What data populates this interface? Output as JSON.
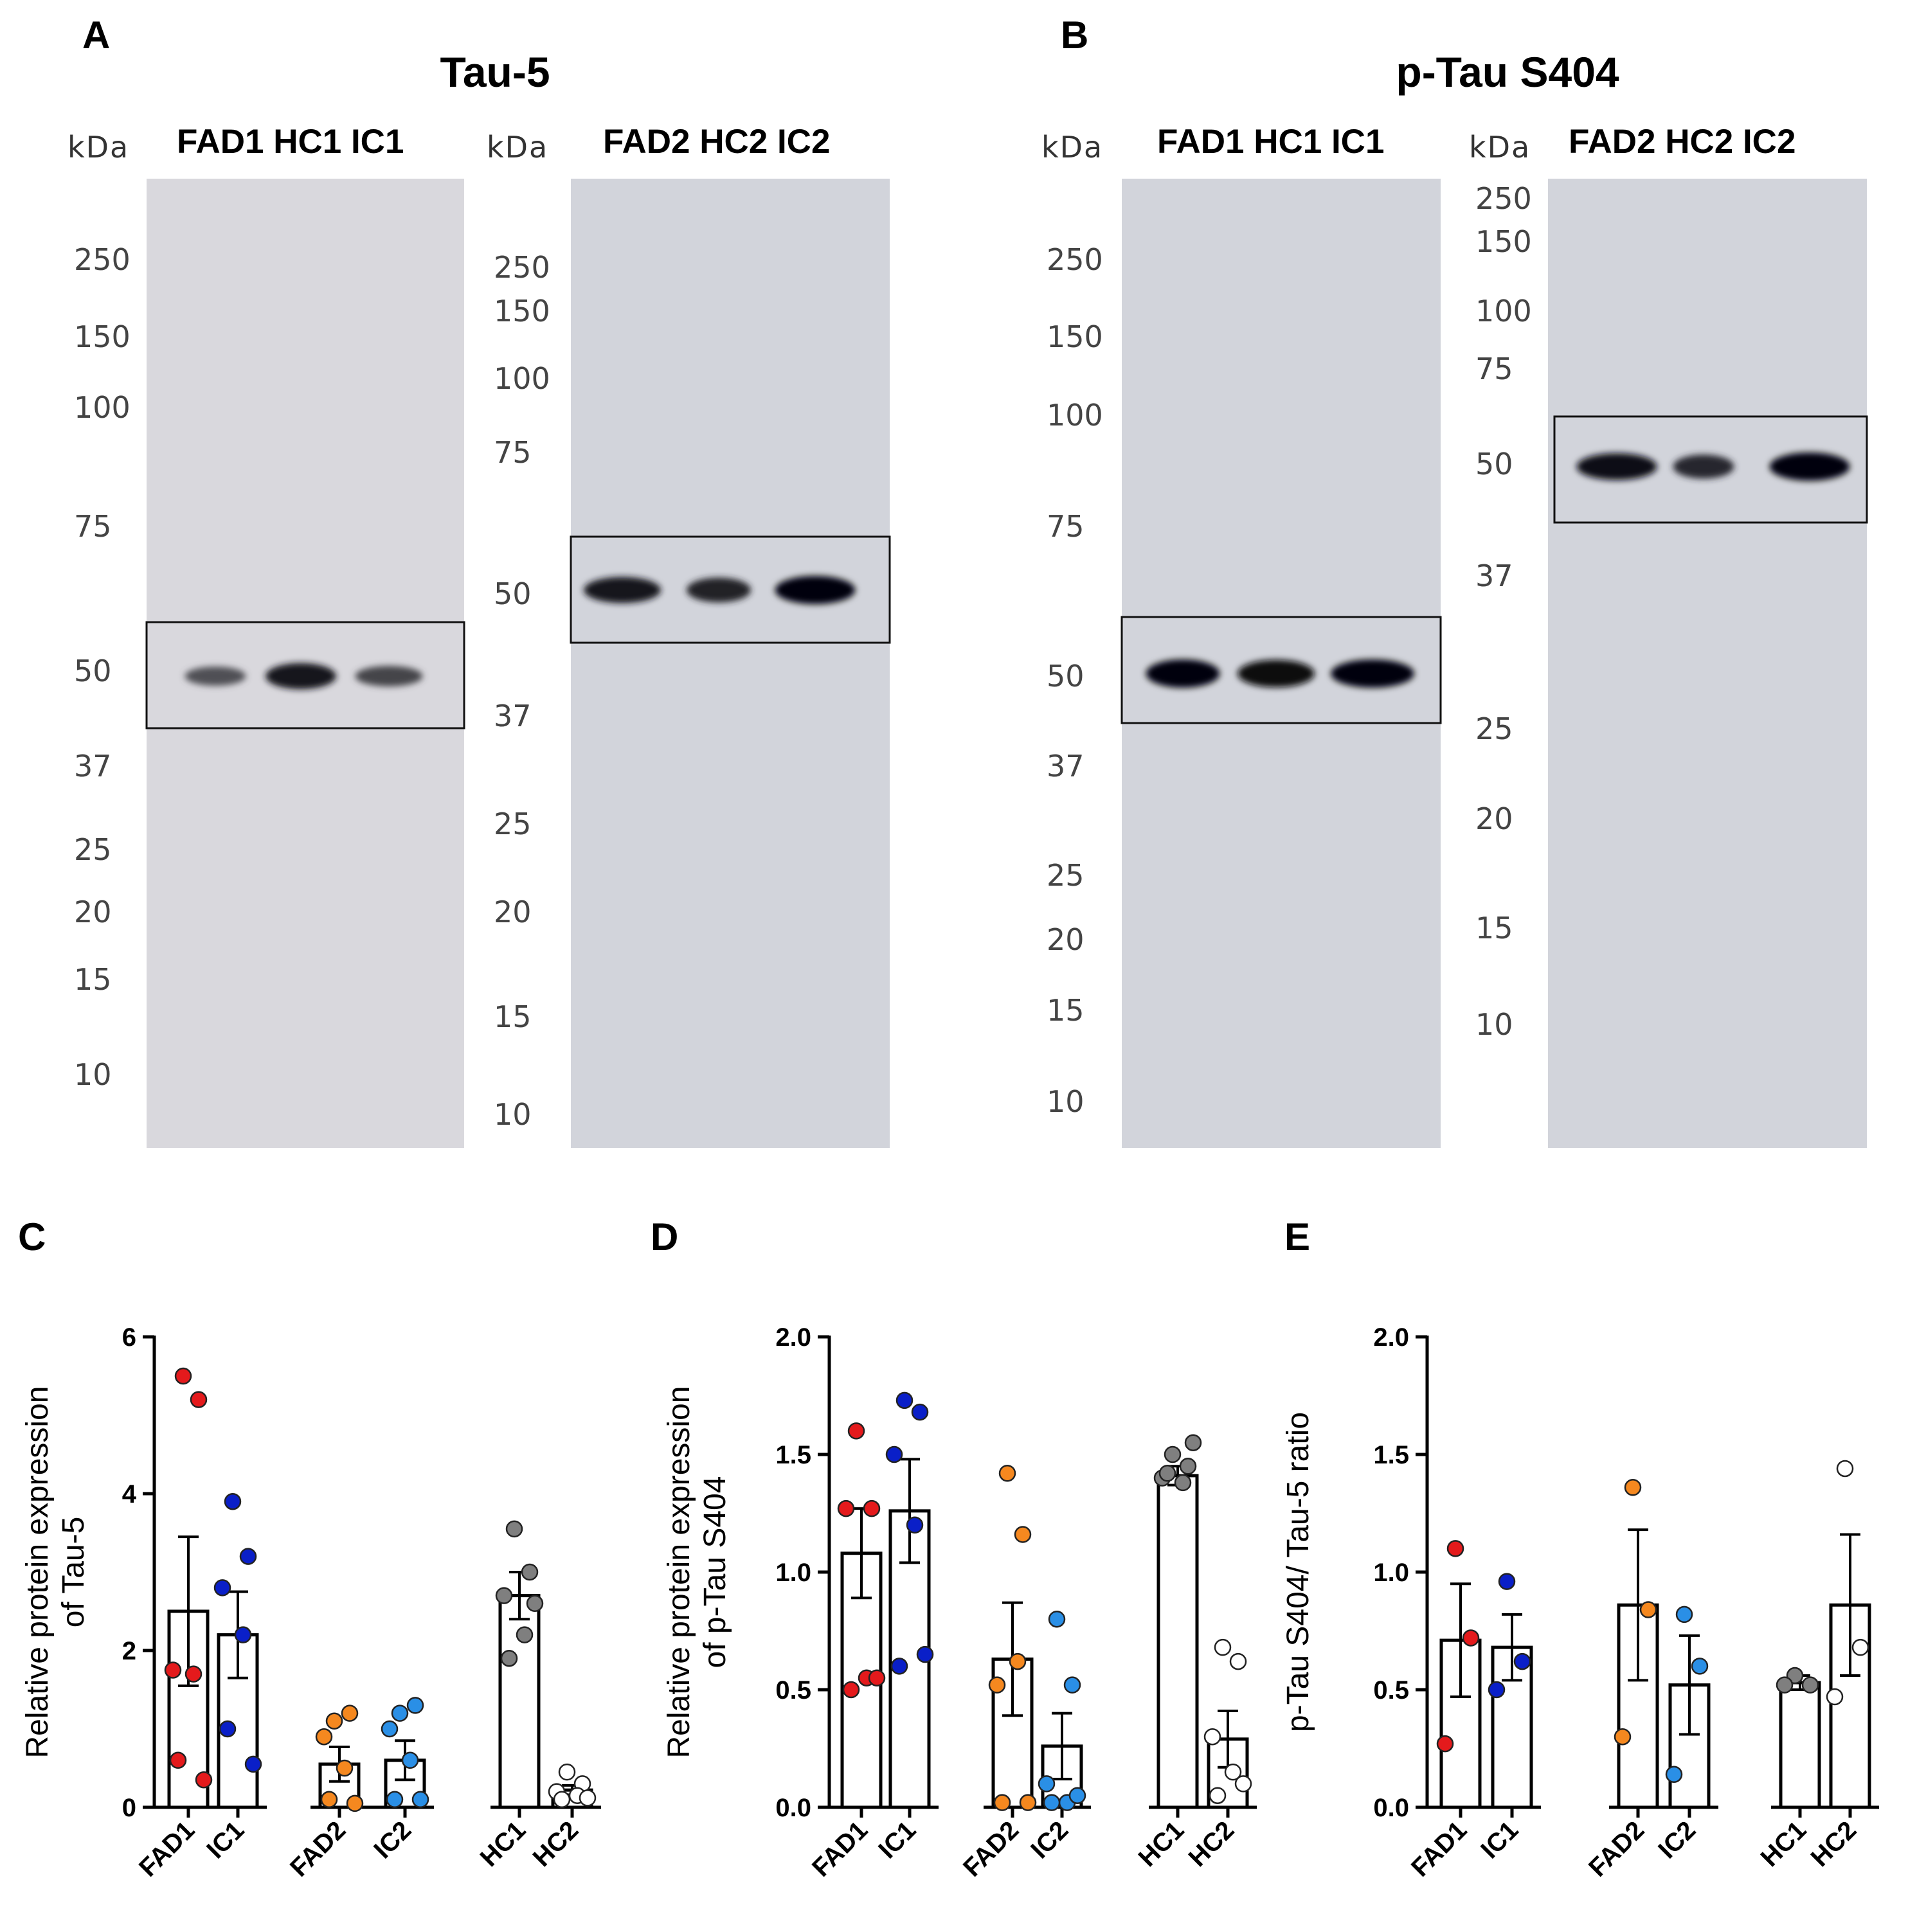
{
  "blots": [
    {
      "letter": "A",
      "title": "Tau-5",
      "membranes": [
        {
          "kda": "kDa",
          "lanes": "FAD1 HC1 IC1",
          "markers": [
            "250",
            "150",
            "100",
            "75",
            "50",
            "37",
            "25",
            "20",
            "15",
            "10"
          ],
          "bands": [
            0.35,
            0.85,
            0.45
          ]
        },
        {
          "kda": "kDa",
          "lanes": "FAD2 HC2 IC2",
          "markers": [
            "250",
            "150",
            "100",
            "75",
            "50",
            "37",
            "25",
            "20",
            "15",
            "10"
          ],
          "bands": [
            0.85,
            0.75,
            1.0
          ]
        }
      ]
    },
    {
      "letter": "B",
      "title": "p-Tau S404",
      "membranes": [
        {
          "kda": "kDa",
          "lanes": "FAD1 HC1 IC1",
          "markers": [
            "250",
            "150",
            "100",
            "75",
            "50",
            "37",
            "25",
            "20",
            "15",
            "10"
          ],
          "bands": [
            1.0,
            0.95,
            1.0
          ]
        },
        {
          "kda": "kDa",
          "lanes": "FAD2 HC2 IC2",
          "markers": [
            "250",
            "150",
            "100",
            "75",
            "50",
            "37",
            "25",
            "20",
            "15",
            "10"
          ],
          "bands": [
            0.9,
            0.7,
            1.0
          ]
        }
      ]
    }
  ],
  "chart_data": [
    {
      "letter": "C",
      "type": "bar",
      "ylabel_lines": [
        "Relative protein expression",
        "of Tau-5"
      ],
      "ylim": [
        0,
        6
      ],
      "yticks": [
        0,
        2,
        4,
        6
      ],
      "yticklabels": [
        "0",
        "2",
        "4",
        "6"
      ],
      "categories": [
        "FAD1",
        "IC1",
        "FAD2",
        "IC2",
        "HC1",
        "HC2"
      ],
      "colors": [
        "#e41a1c",
        "#0a1fc8",
        "#f5881f",
        "#2a8fe6",
        "#7f7f7f",
        "#ffffff"
      ],
      "means": [
        2.5,
        2.2,
        0.55,
        0.6,
        2.7,
        0.22
      ],
      "sem": [
        0.95,
        0.55,
        0.22,
        0.25,
        0.3,
        0.06
      ],
      "points": [
        [
          5.5,
          5.2,
          1.75,
          1.7,
          0.6,
          0.35
        ],
        [
          3.9,
          3.2,
          2.8,
          2.2,
          1.0,
          0.55
        ],
        [
          1.1,
          1.2,
          0.9,
          0.5,
          0.1,
          0.05
        ],
        [
          1.2,
          1.3,
          1.0,
          0.6,
          0.1,
          0.1
        ],
        [
          3.55,
          3.0,
          2.7,
          2.2,
          1.9,
          2.6
        ],
        [
          0.45,
          0.3,
          0.2,
          0.15,
          0.1,
          0.12
        ]
      ]
    },
    {
      "letter": "D",
      "type": "bar",
      "ylabel_lines": [
        "Relative protein expression",
        "of p-Tau S404"
      ],
      "ylim": [
        0,
        2.0
      ],
      "yticks": [
        0,
        0.5,
        1.0,
        1.5,
        2.0
      ],
      "yticklabels": [
        "0.0",
        "0.5",
        "1.0",
        "1.5",
        "2.0"
      ],
      "categories": [
        "FAD1",
        "IC1",
        "FAD2",
        "IC2",
        "HC1",
        "HC2"
      ],
      "colors": [
        "#e41a1c",
        "#0a1fc8",
        "#f5881f",
        "#2a8fe6",
        "#7f7f7f",
        "#ffffff"
      ],
      "means": [
        1.08,
        1.26,
        0.63,
        0.26,
        1.41,
        0.29
      ],
      "sem": [
        0.19,
        0.22,
        0.24,
        0.14,
        0.04,
        0.12
      ],
      "points": [
        [
          1.6,
          1.27,
          1.27,
          0.55,
          0.5,
          0.55
        ],
        [
          1.73,
          1.68,
          1.5,
          1.2,
          0.6,
          0.65
        ],
        [
          1.42,
          1.16,
          0.52,
          0.62,
          0.02,
          0.02
        ],
        [
          0.8,
          0.52,
          0.1,
          0.02,
          0.02,
          0.05
        ],
        [
          1.5,
          1.45,
          1.4,
          1.38,
          1.42,
          1.55
        ],
        [
          0.68,
          0.62,
          0.3,
          0.15,
          0.05,
          0.1
        ]
      ]
    },
    {
      "letter": "E",
      "type": "bar",
      "ylabel_lines": [
        "p-Tau S404/ Tau-5 ratio"
      ],
      "ylim": [
        0,
        2.0
      ],
      "yticks": [
        0,
        0.5,
        1.0,
        1.5,
        2.0
      ],
      "yticklabels": [
        "0.0",
        "0.5",
        "1.0",
        "1.5",
        "2.0"
      ],
      "categories": [
        "FAD1",
        "IC1",
        "FAD2",
        "IC2",
        "HC1",
        "HC2"
      ],
      "colors": [
        "#e41a1c",
        "#0a1fc8",
        "#f5881f",
        "#2a8fe6",
        "#7f7f7f",
        "#ffffff"
      ],
      "means": [
        0.71,
        0.68,
        0.86,
        0.52,
        0.53,
        0.86
      ],
      "sem": [
        0.24,
        0.14,
        0.32,
        0.21,
        0.03,
        0.3
      ],
      "points": [
        [
          1.1,
          0.72,
          0.27
        ],
        [
          0.96,
          0.62,
          0.5
        ],
        [
          1.36,
          0.84,
          0.3
        ],
        [
          0.82,
          0.6,
          0.14
        ],
        [
          0.56,
          0.52,
          0.52
        ],
        [
          1.44,
          0.68,
          0.47
        ]
      ]
    }
  ]
}
